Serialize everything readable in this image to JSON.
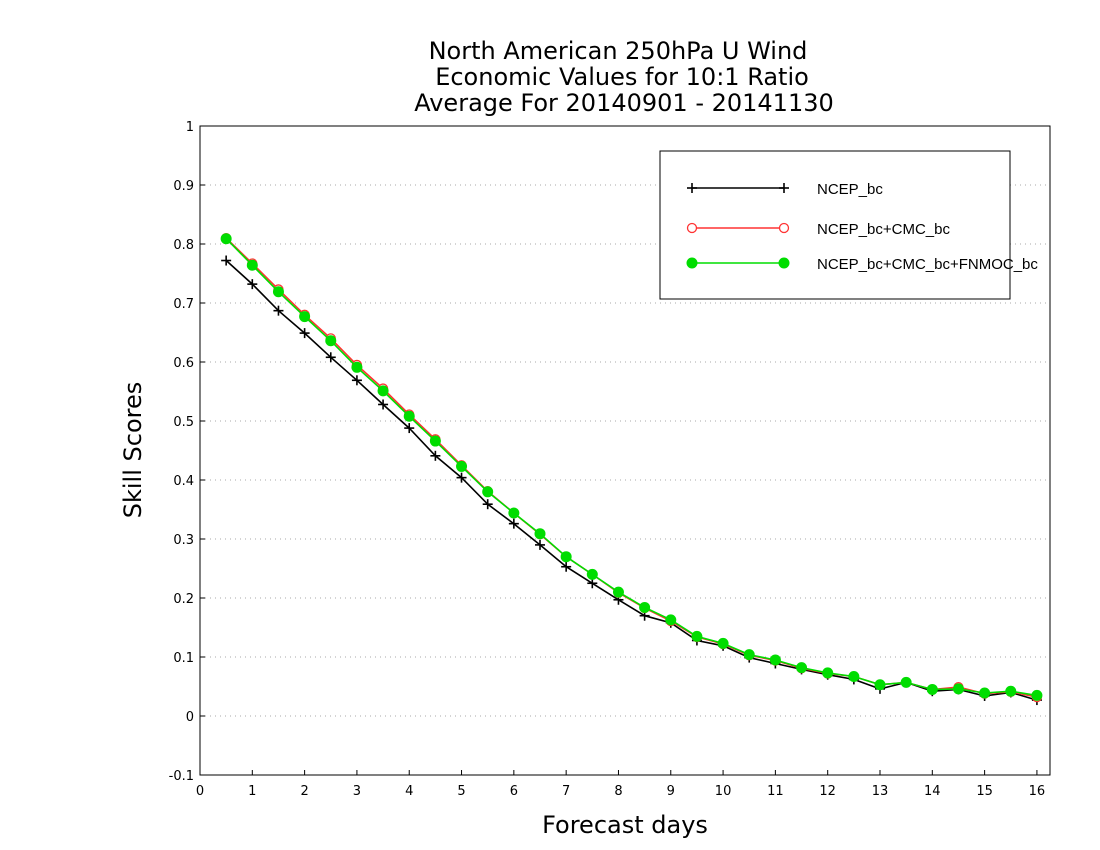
{
  "chart_data": {
    "type": "line",
    "title_lines": [
      "North American 250hPa U Wind",
      "Economic Values for 10:1 Ratio",
      "Average For 20140901 - 20141130"
    ],
    "xlabel": "Forecast days",
    "ylabel": "Skill Scores",
    "xlim": [
      0,
      16.25
    ],
    "ylim": [
      -0.1,
      1
    ],
    "xticks": [
      0,
      1,
      2,
      3,
      4,
      5,
      6,
      7,
      8,
      9,
      10,
      11,
      12,
      13,
      14,
      15,
      16
    ],
    "yticks": [
      -0.1,
      0,
      0.1,
      0.2,
      0.3,
      0.4,
      0.5,
      0.6,
      0.7,
      0.8,
      0.9,
      1
    ],
    "ytick_labels": [
      "-0.1",
      "0",
      "0.1",
      "0.2",
      "0.3",
      "0.4",
      "0.5",
      "0.6",
      "0.7",
      "0.8",
      "0.9",
      "1"
    ],
    "grid": "horizontal dotted",
    "legend_position": "top-right",
    "x": [
      0.5,
      1,
      1.5,
      2,
      2.5,
      3,
      3.5,
      4,
      4.5,
      5,
      5.5,
      6,
      6.5,
      7,
      7.5,
      8,
      8.5,
      9,
      9.5,
      10,
      10.5,
      11,
      11.5,
      12,
      12.5,
      13,
      13.5,
      14,
      14.5,
      15,
      15.5,
      16
    ],
    "series": [
      {
        "name": "NCEP_bc",
        "color": "#000000",
        "marker": "plus",
        "values": [
          0.772,
          0.732,
          0.687,
          0.649,
          0.608,
          0.569,
          0.528,
          0.488,
          0.441,
          0.404,
          0.359,
          0.326,
          0.29,
          0.253,
          0.225,
          0.197,
          0.17,
          0.158,
          0.128,
          0.119,
          0.099,
          0.089,
          0.079,
          0.07,
          0.062,
          0.046,
          0.057,
          0.042,
          0.045,
          0.034,
          0.04,
          0.027
        ]
      },
      {
        "name": "NCEP_bc+CMC_bc",
        "color": "#ff3333",
        "marker": "open-circle",
        "values": [
          0.81,
          0.767,
          0.723,
          0.68,
          0.64,
          0.595,
          0.555,
          0.511,
          0.469,
          0.425,
          0.381,
          0.344,
          0.308,
          0.27,
          0.24,
          0.209,
          0.183,
          0.161,
          0.134,
          0.122,
          0.103,
          0.094,
          0.081,
          0.072,
          0.067,
          0.053,
          0.057,
          0.045,
          0.049,
          0.038,
          0.041,
          0.032
        ]
      },
      {
        "name": "NCEP_bc+CMC_bc+FNMOC_bc",
        "color": "#00dd00",
        "marker": "filled-circle",
        "values": [
          0.809,
          0.764,
          0.719,
          0.677,
          0.636,
          0.591,
          0.551,
          0.508,
          0.466,
          0.423,
          0.38,
          0.344,
          0.309,
          0.27,
          0.24,
          0.21,
          0.184,
          0.163,
          0.135,
          0.123,
          0.104,
          0.095,
          0.082,
          0.073,
          0.067,
          0.053,
          0.057,
          0.045,
          0.046,
          0.039,
          0.042,
          0.035
        ]
      }
    ]
  }
}
